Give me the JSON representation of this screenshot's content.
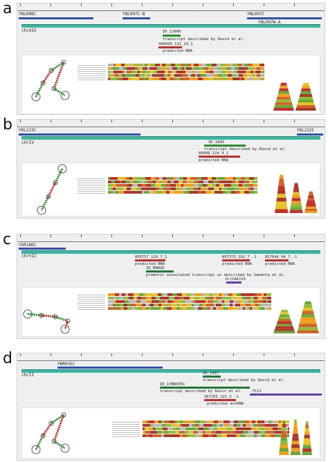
{
  "panels": [
    {
      "letter": "a",
      "chromosome": "chrXIV",
      "genes": [
        "YNL098C",
        "YNL097C-B",
        "YNL097C",
        "YNL097W-A"
      ],
      "features": [
        {
          "id": "ID_12600",
          "desc": "transcript described by David et al."
        },
        {
          "id": "440943_121_14_1",
          "desc": "predicted RNA"
        }
      ]
    },
    {
      "letter": "b",
      "chromosome": "chrIV",
      "genes": [
        "YDL223C",
        "YDL222C"
      ],
      "features": [
        {
          "id": "ID_1845",
          "desc": "transcript described by David et al."
        },
        {
          "id": "60609_124_4_1",
          "desc": "predicted RNA"
        }
      ]
    },
    {
      "letter": "c",
      "chromosome": "chrVII",
      "genes": [
        "YGR180C"
      ],
      "features": [
        {
          "id": "856757_120_7_1",
          "desc": "predicted RNA"
        },
        {
          "id": "857373_102_7_-1",
          "desc": "predicted RNA"
        },
        {
          "id": "857644_94_7_-1",
          "desc": "predicted RNA"
        },
        {
          "id": "ID_MAN20",
          "desc": "promotor associated transcript as described by Samanta et al."
        },
        {
          "id": "tL(CAA)G3",
          "desc": ""
        }
      ]
    },
    {
      "letter": "d",
      "chromosome": "chrII",
      "genes": [
        "YBR035C",
        "TLC1"
      ],
      "features": [
        {
          "id": "ID_1957",
          "desc": "transcript described by David et al."
        },
        {
          "id": "ID_1YBR035C",
          "desc": "transcript described by Davis et al."
        },
        {
          "id": "367255_121_2_-1",
          "desc": "predicted ancRNA"
        }
      ]
    }
  ]
}
